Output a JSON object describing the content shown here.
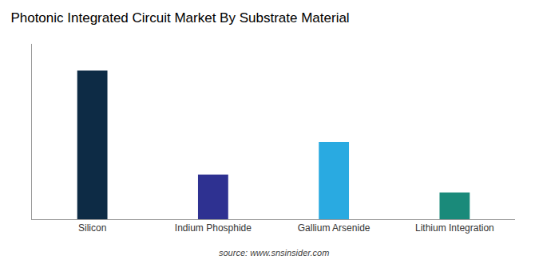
{
  "chart_data": {
    "type": "bar",
    "title": "Photonic Integrated Circuit Market By Substrate Material",
    "categories": [
      "Silicon",
      "Indium Phosphide",
      "Gallium Arsenide",
      "Lithium Integration"
    ],
    "values": [
      100,
      30,
      52,
      18
    ],
    "colors": [
      "#0d2b45",
      "#2e3191",
      "#29aae1",
      "#1a8a7a"
    ],
    "ylim": [
      0,
      118
    ],
    "grid": false,
    "tick_labels": "x",
    "annotations": [
      "source: www.snsinsider.com"
    ]
  }
}
